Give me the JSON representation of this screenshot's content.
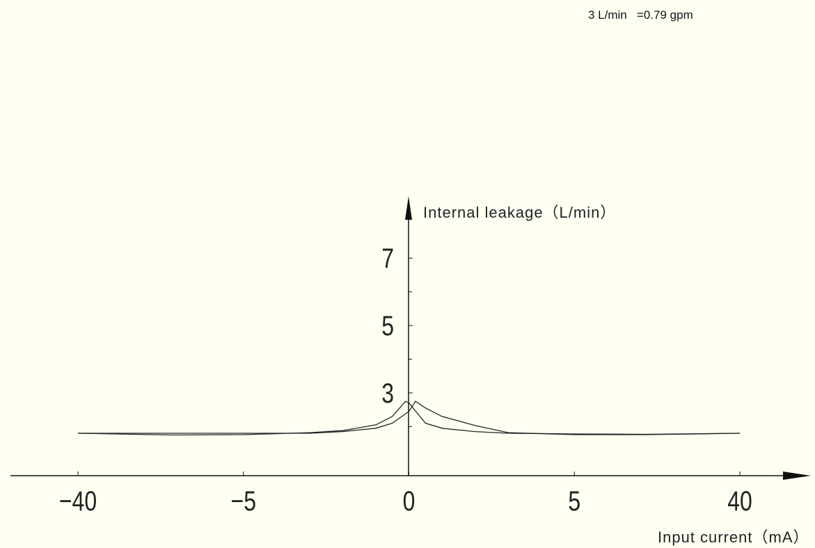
{
  "chart_data": {
    "type": "line",
    "annotation": "3 L/min   =0.79 gpm",
    "y_label": "Internal leakage（L/min）",
    "x_label": "Input current（mA）",
    "xlim": [
      -40,
      40
    ],
    "xticks": [
      {
        "value": -40,
        "label": "−40"
      },
      {
        "value": -5,
        "label": "−5"
      },
      0,
      5,
      40
    ],
    "ylim": [
      0.5,
      8.8
    ],
    "yticks": [
      3,
      5,
      7
    ],
    "yminor_ticks": [
      2,
      4,
      6
    ],
    "series": [
      {
        "color": "#222222",
        "x": [
          -40,
          -20,
          -5,
          -3,
          -2,
          -1,
          -0.5,
          -0.1,
          0,
          0.5,
          1,
          2,
          3,
          5,
          20,
          40
        ],
        "values": [
          1.8,
          1.75,
          1.76,
          1.82,
          1.88,
          2.05,
          2.3,
          2.75,
          2.7,
          2.1,
          1.95,
          1.85,
          1.8,
          1.78,
          1.77,
          1.8
        ]
      },
      {
        "color": "#222222",
        "x": [
          -40,
          -5,
          -3,
          -2,
          -1,
          -0.5,
          0,
          0.2,
          0.5,
          1,
          2,
          3,
          5,
          20,
          40
        ],
        "values": [
          1.8,
          1.8,
          1.8,
          1.85,
          1.95,
          2.1,
          2.45,
          2.75,
          2.55,
          2.3,
          2.03,
          1.82,
          1.76,
          1.76,
          1.8
        ]
      }
    ]
  }
}
